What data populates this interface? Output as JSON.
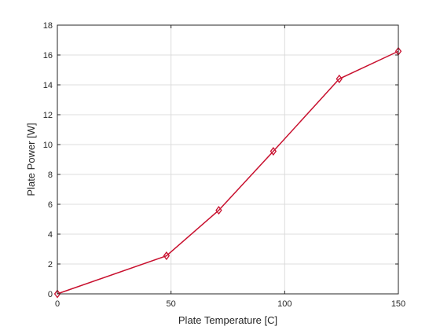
{
  "chart_data": {
    "type": "line",
    "title": "",
    "xlabel": "Plate Temperature [C]",
    "ylabel": "Plate Power [W]",
    "xlim": [
      0,
      150
    ],
    "ylim": [
      0,
      18
    ],
    "x_ticks": [
      0,
      50,
      100,
      150
    ],
    "y_ticks": [
      0,
      2,
      4,
      6,
      8,
      10,
      12,
      14,
      16,
      18
    ],
    "grid": true,
    "legend": "none",
    "series": [
      {
        "color": "#c8102e",
        "marker": "diamond",
        "points": [
          {
            "x": 0,
            "y": 0
          },
          {
            "x": 48,
            "y": 2.55
          },
          {
            "x": 71,
            "y": 5.6
          },
          {
            "x": 95,
            "y": 9.55
          },
          {
            "x": 124,
            "y": 14.4
          },
          {
            "x": 150,
            "y": 16.25
          }
        ]
      }
    ]
  }
}
